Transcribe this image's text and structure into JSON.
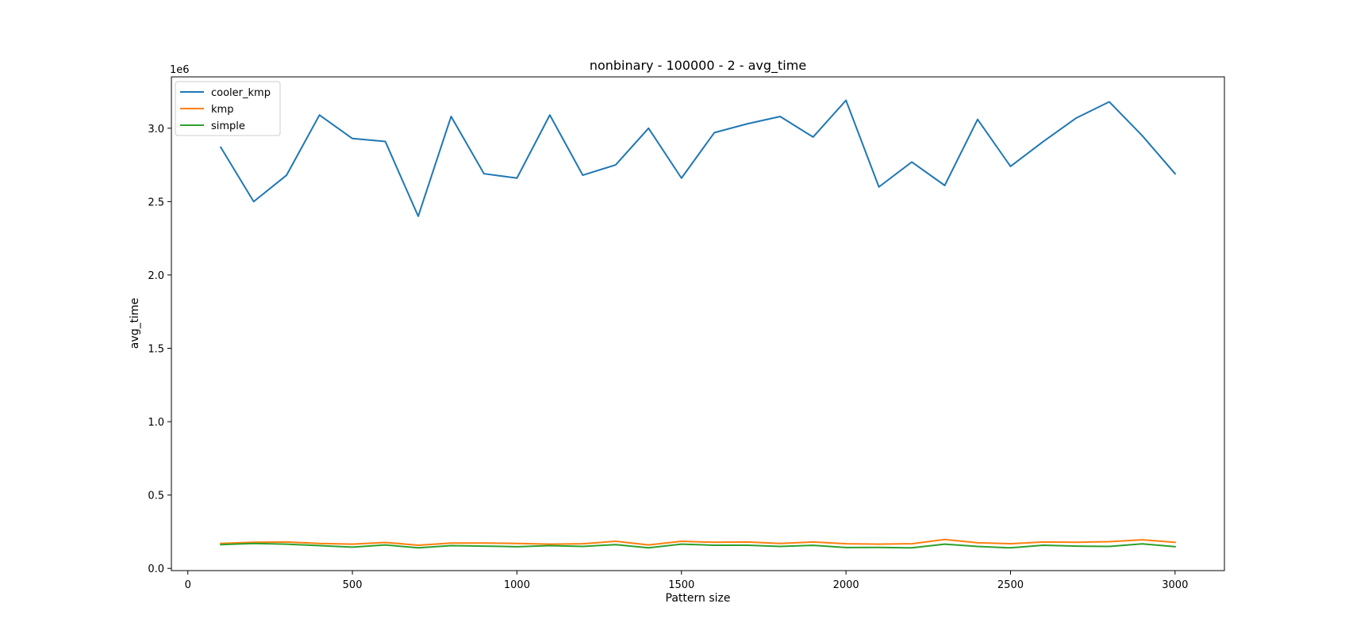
{
  "chart_data": {
    "type": "line",
    "title": "nonbinary - 100000 - 2 - avg_time",
    "xlabel": "Pattern size",
    "ylabel": "avg_time",
    "y_offset_text": "1e6",
    "xlim": [
      -50,
      3150
    ],
    "ylim": [
      -0.015,
      3.35
    ],
    "x_ticks": [
      0,
      500,
      1000,
      1500,
      2000,
      2500,
      3000
    ],
    "x_tick_labels": [
      "0",
      "500",
      "1000",
      "1500",
      "2000",
      "2500",
      "3000"
    ],
    "y_ticks": [
      0.0,
      0.5,
      1.0,
      1.5,
      2.0,
      2.5,
      3.0
    ],
    "y_tick_labels": [
      "0.0",
      "0.5",
      "1.0",
      "1.5",
      "2.0",
      "2.5",
      "3.0"
    ],
    "grid": false,
    "legend_position": "top-left",
    "x": [
      100,
      200,
      300,
      400,
      500,
      600,
      700,
      800,
      900,
      1000,
      1100,
      1200,
      1300,
      1400,
      1500,
      1600,
      1700,
      1800,
      1900,
      2000,
      2100,
      2200,
      2300,
      2400,
      2500,
      2600,
      2700,
      2800,
      2900,
      3000
    ],
    "series": [
      {
        "name": "cooler_kmp",
        "color": "#1f77b4",
        "values": [
          2.87,
          2.5,
          2.68,
          3.09,
          2.93,
          2.91,
          2.4,
          3.08,
          2.69,
          2.66,
          3.09,
          2.68,
          2.75,
          3.0,
          2.66,
          2.97,
          3.03,
          3.08,
          2.94,
          3.19,
          2.6,
          2.77,
          2.61,
          3.06,
          2.74,
          2.91,
          3.07,
          3.18,
          2.95,
          2.69
        ]
      },
      {
        "name": "kmp",
        "color": "#ff7f0e",
        "values": [
          0.17,
          0.178,
          0.18,
          0.17,
          0.165,
          0.177,
          0.158,
          0.173,
          0.173,
          0.17,
          0.165,
          0.168,
          0.185,
          0.16,
          0.185,
          0.178,
          0.18,
          0.17,
          0.18,
          0.168,
          0.165,
          0.168,
          0.197,
          0.175,
          0.168,
          0.18,
          0.178,
          0.182,
          0.195,
          0.178
        ]
      },
      {
        "name": "simple",
        "color": "#2ca02c",
        "values": [
          0.162,
          0.17,
          0.165,
          0.155,
          0.145,
          0.16,
          0.14,
          0.155,
          0.152,
          0.148,
          0.155,
          0.15,
          0.162,
          0.14,
          0.165,
          0.158,
          0.158,
          0.15,
          0.157,
          0.142,
          0.143,
          0.14,
          0.165,
          0.15,
          0.14,
          0.158,
          0.152,
          0.15,
          0.167,
          0.148
        ]
      }
    ]
  }
}
